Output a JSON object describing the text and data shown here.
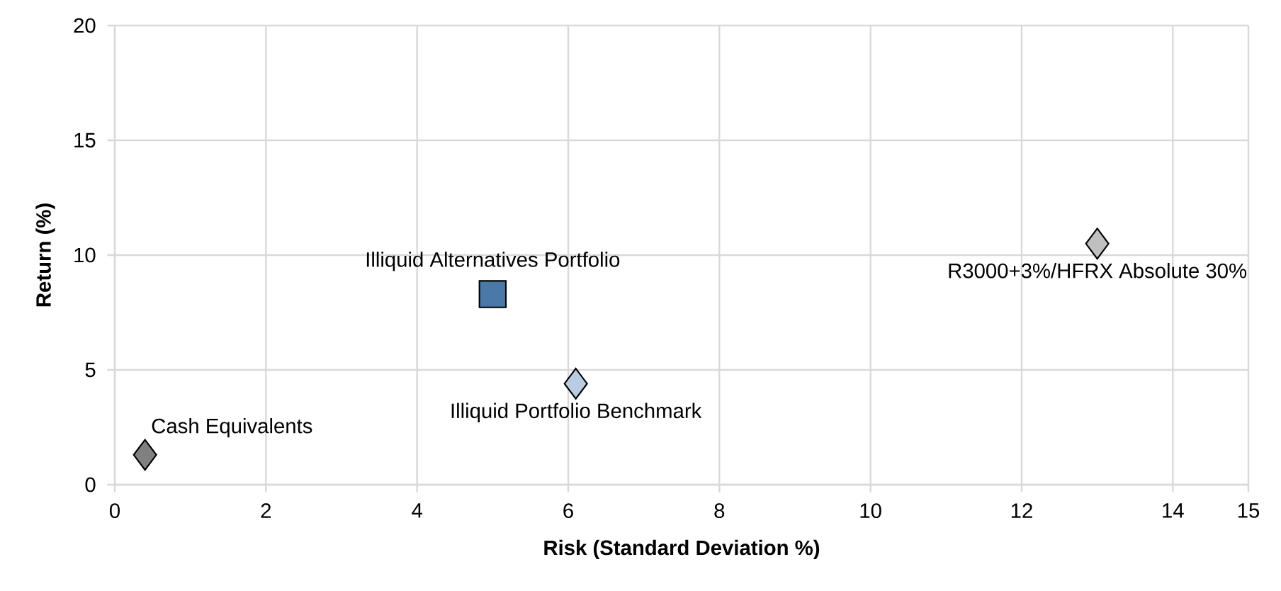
{
  "chart_data": {
    "type": "scatter",
    "xlabel": "Risk (Standard Deviation %)",
    "ylabel": "Return (%)",
    "xlim": [
      0,
      15
    ],
    "xticks": [
      0,
      2,
      4,
      6,
      8,
      10,
      12,
      14,
      15
    ],
    "ylim": [
      0,
      20
    ],
    "yticks": [
      0,
      5,
      10,
      15,
      20
    ],
    "grid": true,
    "series": [
      {
        "name": "Cash Equivalents",
        "color": "#808080",
        "marker": "diamond",
        "x": [
          0.4
        ],
        "values": [
          1.3
        ]
      },
      {
        "name": "Illiquid Alternatives Portfolio",
        "color": "#4a78a8",
        "marker": "square",
        "x": [
          5.0
        ],
        "values": [
          8.3
        ]
      },
      {
        "name": "Illiquid Portfolio Benchmark",
        "color": "#b8cce4",
        "marker": "diamond",
        "x": [
          6.1
        ],
        "values": [
          4.4
        ]
      },
      {
        "name": "R3000+3%/HFRX Absolute 30%",
        "color": "#c0c0c0",
        "marker": "diamond",
        "x": [
          13.0
        ],
        "values": [
          10.5
        ]
      }
    ]
  }
}
